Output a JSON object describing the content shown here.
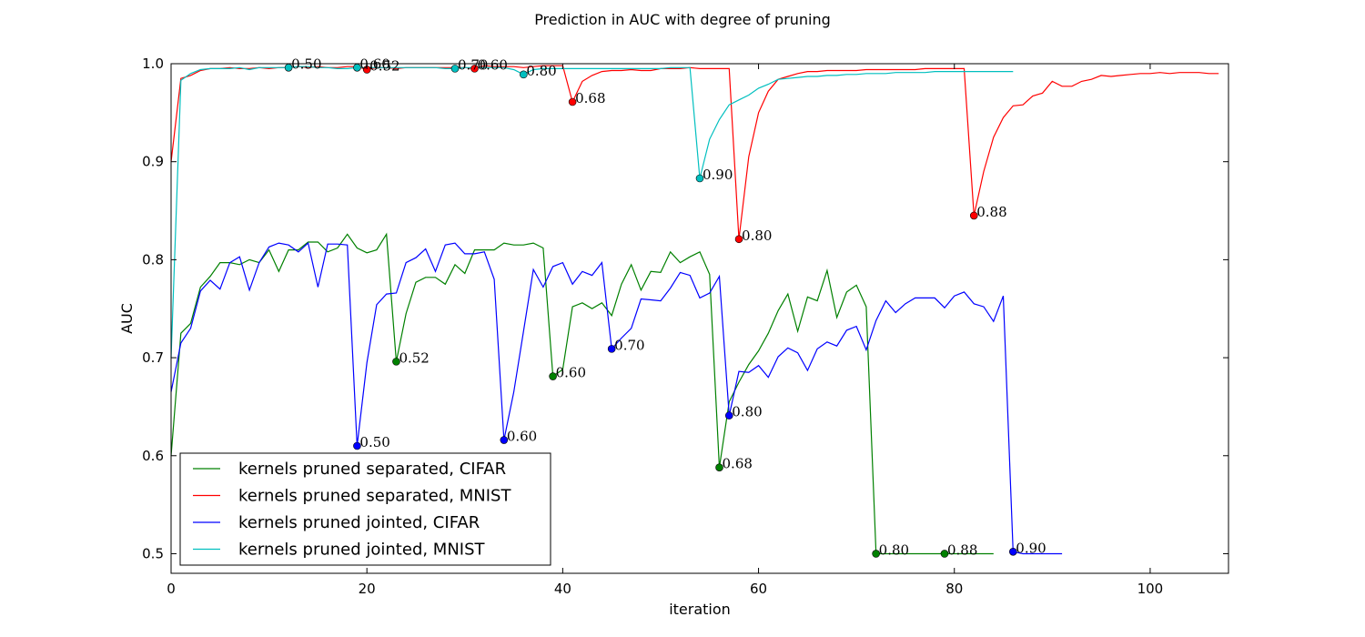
{
  "chart_data": {
    "type": "line",
    "title": "Prediction in AUC with degree of pruning",
    "xlabel": "iteration",
    "ylabel": "AUC",
    "xlim": [
      0,
      108
    ],
    "ylim": [
      0.48,
      1.0
    ],
    "xticks": [
      0,
      20,
      40,
      60,
      80,
      100
    ],
    "yticks": [
      0.5,
      0.6,
      0.7,
      0.8,
      0.9,
      1.0
    ],
    "xtick_labels": [
      "0",
      "20",
      "40",
      "60",
      "80",
      "100"
    ],
    "ytick_labels": [
      "0.5",
      "0.6",
      "0.7",
      "0.8",
      "0.9",
      "1.0"
    ],
    "grid": false,
    "legend_position": "lower-left",
    "series": [
      {
        "name": "kernels pruned separated, CIFAR",
        "color": "#008000",
        "x": [
          0,
          1,
          2,
          3,
          4,
          5,
          6,
          7,
          8,
          9,
          10,
          11,
          12,
          13,
          14,
          15,
          16,
          17,
          18,
          19,
          20,
          21,
          22,
          23,
          24,
          25,
          26,
          27,
          28,
          29,
          30,
          31,
          32,
          33,
          34,
          35,
          36,
          37,
          38,
          39,
          40,
          41,
          42,
          43,
          44,
          45,
          46,
          47,
          48,
          49,
          50,
          51,
          52,
          53,
          54,
          55,
          56,
          57,
          58,
          59,
          60,
          61,
          62,
          63,
          64,
          65,
          66,
          67,
          68,
          69,
          70,
          71,
          72,
          73,
          74,
          75,
          76,
          77,
          78,
          79,
          80,
          81,
          82,
          83,
          84
        ],
        "y": [
          0.6,
          0.725,
          0.735,
          0.772,
          0.783,
          0.797,
          0.797,
          0.795,
          0.8,
          0.797,
          0.81,
          0.788,
          0.81,
          0.81,
          0.818,
          0.818,
          0.808,
          0.812,
          0.826,
          0.812,
          0.807,
          0.81,
          0.826,
          0.696,
          0.745,
          0.777,
          0.782,
          0.782,
          0.775,
          0.795,
          0.786,
          0.81,
          0.81,
          0.81,
          0.817,
          0.815,
          0.815,
          0.817,
          0.812,
          0.681,
          0.688,
          0.752,
          0.756,
          0.75,
          0.756,
          0.743,
          0.775,
          0.795,
          0.769,
          0.788,
          0.787,
          0.808,
          0.797,
          0.803,
          0.808,
          0.785,
          0.588,
          0.655,
          0.675,
          0.693,
          0.707,
          0.725,
          0.748,
          0.765,
          0.727,
          0.762,
          0.758,
          0.789,
          0.741,
          0.767,
          0.774,
          0.752,
          0.5,
          0.5,
          0.5,
          0.5,
          0.5,
          0.5,
          0.5,
          0.5,
          0.5,
          0.5,
          0.5,
          0.5,
          0.5
        ]
      },
      {
        "name": "kernels pruned separated, MNIST",
        "color": "#ff0000",
        "x": [
          0,
          1,
          2,
          3,
          4,
          5,
          6,
          7,
          8,
          9,
          10,
          11,
          12,
          13,
          14,
          15,
          16,
          17,
          18,
          19,
          20,
          21,
          22,
          23,
          24,
          25,
          26,
          27,
          28,
          29,
          30,
          31,
          32,
          33,
          34,
          35,
          36,
          37,
          38,
          39,
          40,
          41,
          42,
          43,
          44,
          45,
          46,
          47,
          48,
          49,
          50,
          51,
          52,
          53,
          54,
          55,
          56,
          57,
          58,
          59,
          60,
          61,
          62,
          63,
          64,
          65,
          66,
          67,
          68,
          69,
          70,
          71,
          72,
          73,
          74,
          75,
          76,
          77,
          78,
          79,
          80,
          81,
          82,
          83,
          84,
          85,
          86,
          87,
          88,
          89,
          90,
          91,
          92,
          93,
          94,
          95,
          96,
          97,
          98,
          99,
          100,
          101,
          102,
          103,
          104,
          105,
          106,
          107
        ],
        "y": [
          0.9,
          0.985,
          0.988,
          0.993,
          0.995,
          0.995,
          0.996,
          0.995,
          0.995,
          0.996,
          0.995,
          0.996,
          0.996,
          0.997,
          0.996,
          0.997,
          0.996,
          0.996,
          0.997,
          0.997,
          0.994,
          0.996,
          0.996,
          0.995,
          0.996,
          0.996,
          0.996,
          0.996,
          0.996,
          0.996,
          0.996,
          0.995,
          0.998,
          0.997,
          0.997,
          0.997,
          0.996,
          0.997,
          0.998,
          0.998,
          0.998,
          0.961,
          0.982,
          0.988,
          0.992,
          0.993,
          0.993,
          0.994,
          0.993,
          0.993,
          0.995,
          0.995,
          0.995,
          0.996,
          0.995,
          0.995,
          0.995,
          0.995,
          0.821,
          0.905,
          0.95,
          0.972,
          0.984,
          0.987,
          0.99,
          0.992,
          0.992,
          0.993,
          0.993,
          0.993,
          0.993,
          0.994,
          0.994,
          0.994,
          0.994,
          0.994,
          0.994,
          0.995,
          0.995,
          0.995,
          0.995,
          0.995,
          0.845,
          0.89,
          0.925,
          0.945,
          0.957,
          0.958,
          0.967,
          0.97,
          0.982,
          0.977,
          0.977,
          0.982,
          0.984,
          0.988,
          0.987,
          0.988,
          0.989,
          0.99,
          0.99,
          0.991,
          0.99,
          0.991,
          0.991,
          0.991,
          0.99,
          0.99
        ]
      },
      {
        "name": "kernels pruned jointed, CIFAR",
        "color": "#0000ff",
        "x": [
          0,
          1,
          2,
          3,
          4,
          5,
          6,
          7,
          8,
          9,
          10,
          11,
          12,
          13,
          14,
          15,
          16,
          17,
          18,
          19,
          20,
          21,
          22,
          23,
          24,
          25,
          26,
          27,
          28,
          29,
          30,
          31,
          32,
          33,
          34,
          35,
          36,
          37,
          38,
          39,
          40,
          41,
          42,
          43,
          44,
          45,
          46,
          47,
          48,
          49,
          50,
          51,
          52,
          53,
          54,
          55,
          56,
          57,
          58,
          59,
          60,
          61,
          62,
          63,
          64,
          65,
          66,
          67,
          68,
          69,
          70,
          71,
          72,
          73,
          74,
          75,
          76,
          77,
          78,
          79,
          80,
          81,
          82,
          83,
          84,
          85,
          86,
          87,
          88,
          89,
          90,
          91
        ],
        "y": [
          0.665,
          0.715,
          0.73,
          0.768,
          0.779,
          0.77,
          0.797,
          0.803,
          0.769,
          0.797,
          0.813,
          0.817,
          0.815,
          0.808,
          0.817,
          0.772,
          0.816,
          0.816,
          0.815,
          0.61,
          0.695,
          0.754,
          0.765,
          0.766,
          0.797,
          0.802,
          0.811,
          0.788,
          0.815,
          0.817,
          0.806,
          0.806,
          0.808,
          0.78,
          0.616,
          0.665,
          0.727,
          0.79,
          0.772,
          0.793,
          0.797,
          0.775,
          0.788,
          0.784,
          0.797,
          0.709,
          0.72,
          0.73,
          0.76,
          0.759,
          0.758,
          0.771,
          0.787,
          0.784,
          0.761,
          0.766,
          0.783,
          0.641,
          0.686,
          0.685,
          0.692,
          0.68,
          0.701,
          0.71,
          0.705,
          0.687,
          0.709,
          0.716,
          0.712,
          0.728,
          0.732,
          0.708,
          0.738,
          0.758,
          0.746,
          0.755,
          0.761,
          0.761,
          0.761,
          0.751,
          0.763,
          0.767,
          0.755,
          0.752,
          0.737,
          0.763,
          0.502,
          0.5,
          0.5,
          0.5,
          0.5,
          0.5
        ]
      },
      {
        "name": "kernels pruned jointed, MNIST",
        "color": "#00bfbf",
        "x": [
          0,
          1,
          2,
          3,
          4,
          5,
          6,
          7,
          8,
          9,
          10,
          11,
          12,
          13,
          14,
          15,
          16,
          17,
          18,
          19,
          20,
          21,
          22,
          23,
          24,
          25,
          26,
          27,
          28,
          29,
          30,
          31,
          32,
          33,
          34,
          35,
          36,
          37,
          38,
          39,
          40,
          41,
          42,
          43,
          44,
          45,
          46,
          47,
          48,
          49,
          50,
          51,
          52,
          53,
          54,
          55,
          56,
          57,
          58,
          59,
          60,
          61,
          62,
          63,
          64,
          65,
          66,
          67,
          68,
          69,
          70,
          71,
          72,
          73,
          74,
          75,
          76,
          77,
          78,
          79,
          80,
          81,
          82,
          83,
          84,
          85,
          86
        ],
        "y": [
          0.7,
          0.983,
          0.99,
          0.994,
          0.995,
          0.995,
          0.995,
          0.996,
          0.994,
          0.996,
          0.996,
          0.996,
          0.996,
          0.997,
          0.997,
          0.996,
          0.996,
          0.995,
          0.995,
          0.996,
          0.996,
          0.996,
          0.996,
          0.996,
          0.996,
          0.996,
          0.996,
          0.996,
          0.995,
          0.995,
          0.996,
          0.996,
          0.996,
          0.996,
          0.996,
          0.994,
          0.989,
          0.994,
          0.995,
          0.995,
          0.995,
          0.995,
          0.995,
          0.995,
          0.995,
          0.995,
          0.995,
          0.995,
          0.995,
          0.995,
          0.995,
          0.996,
          0.996,
          0.996,
          0.883,
          0.923,
          0.943,
          0.958,
          0.963,
          0.968,
          0.975,
          0.979,
          0.984,
          0.985,
          0.986,
          0.987,
          0.987,
          0.988,
          0.988,
          0.989,
          0.989,
          0.99,
          0.99,
          0.99,
          0.991,
          0.991,
          0.991,
          0.991,
          0.992,
          0.992,
          0.992,
          0.992,
          0.992,
          0.992,
          0.992,
          0.992,
          0.992
        ]
      }
    ],
    "markers": [
      {
        "series": 0,
        "x": 23,
        "y": 0.696,
        "label": "0.52"
      },
      {
        "series": 0,
        "x": 39,
        "y": 0.681,
        "label": "0.60"
      },
      {
        "series": 0,
        "x": 56,
        "y": 0.588,
        "label": "0.68"
      },
      {
        "series": 0,
        "x": 72,
        "y": 0.5,
        "label": "0.80"
      },
      {
        "series": 0,
        "x": 79,
        "y": 0.5,
        "label": "0.88"
      },
      {
        "series": 1,
        "x": 20,
        "y": 0.994,
        "label": "0.52"
      },
      {
        "series": 1,
        "x": 31,
        "y": 0.995,
        "label": "0.60"
      },
      {
        "series": 1,
        "x": 41,
        "y": 0.961,
        "label": "0.68"
      },
      {
        "series": 1,
        "x": 58,
        "y": 0.821,
        "label": "0.80"
      },
      {
        "series": 1,
        "x": 82,
        "y": 0.845,
        "label": "0.88"
      },
      {
        "series": 2,
        "x": 19,
        "y": 0.61,
        "label": "0.50"
      },
      {
        "series": 2,
        "x": 34,
        "y": 0.616,
        "label": "0.60"
      },
      {
        "series": 2,
        "x": 45,
        "y": 0.709,
        "label": "0.70"
      },
      {
        "series": 2,
        "x": 57,
        "y": 0.641,
        "label": "0.80"
      },
      {
        "series": 2,
        "x": 86,
        "y": 0.502,
        "label": "0.90"
      },
      {
        "series": 3,
        "x": 12,
        "y": 0.996,
        "label": "0.50"
      },
      {
        "series": 3,
        "x": 19,
        "y": 0.996,
        "label": "0.60"
      },
      {
        "series": 3,
        "x": 29,
        "y": 0.995,
        "label": "0.70"
      },
      {
        "series": 3,
        "x": 36,
        "y": 0.989,
        "label": "0.80"
      },
      {
        "series": 3,
        "x": 54,
        "y": 0.883,
        "label": "0.90"
      }
    ]
  }
}
